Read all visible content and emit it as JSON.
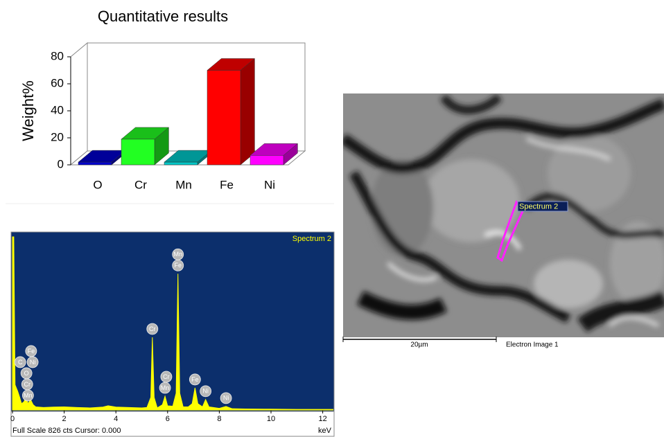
{
  "chart_data": [
    {
      "type": "bar3d",
      "title": "Quantitative results",
      "ylabel": "Weight%",
      "categories": [
        "O",
        "Cr",
        "Mn",
        "Fe",
        "Ni"
      ],
      "values": [
        2,
        19,
        2,
        70,
        7
      ],
      "colors": [
        "#0000cc",
        "#22ff22",
        "#00c8c8",
        "#ff0000",
        "#ff00ff"
      ],
      "ylim": [
        0,
        80
      ],
      "yticks": [
        0,
        20,
        40,
        60,
        80
      ]
    },
    {
      "type": "spectrum",
      "xlabel": "keV",
      "footer": "Full Scale 826 cts Cursor: 0.000",
      "x": [
        0,
        0.05,
        0.1,
        0.2,
        0.28,
        0.35,
        0.45,
        0.52,
        0.6,
        0.7,
        0.8,
        0.9,
        1.2,
        1.6,
        2.0,
        2.5,
        3.0,
        3.5,
        3.7,
        4.0,
        4.5,
        5.0,
        5.2,
        5.35,
        5.41,
        5.48,
        5.6,
        5.8,
        5.9,
        6.0,
        6.2,
        6.33,
        6.4,
        6.47,
        6.6,
        6.8,
        6.95,
        7.06,
        7.17,
        7.35,
        7.47,
        7.6,
        8.0,
        8.26,
        8.5,
        9,
        10,
        11,
        12,
        12.4
      ],
      "series": [
        {
          "name": "Spectrum 2",
          "color": "#ffff00",
          "values": [
            826,
            826,
            120,
            90,
            60,
            30,
            40,
            66,
            30,
            50,
            25,
            15,
            12,
            14,
            15,
            12,
            10,
            14,
            20,
            14,
            12,
            10,
            12,
            60,
            347,
            60,
            10,
            25,
            66,
            20,
            18,
            80,
            650,
            80,
            15,
            15,
            30,
            106,
            30,
            15,
            50,
            15,
            8,
            17,
            6,
            5,
            4,
            3,
            3,
            3
          ]
        }
      ],
      "xlim": [
        0,
        12.4
      ],
      "ylim": [
        0,
        826
      ],
      "xticks": [
        0,
        2,
        4,
        6,
        8,
        10,
        12
      ],
      "annotations": [
        {
          "label": "Mn",
          "x": 0.6
        },
        {
          "label": "Cr",
          "x": 0.57
        },
        {
          "label": "O",
          "x": 0.54
        },
        {
          "label": "Ni",
          "x": 0.78
        },
        {
          "label": "Fe",
          "x": 0.72
        },
        {
          "label": "C",
          "x": 0.3
        },
        {
          "label": "Cr",
          "x": 5.41
        },
        {
          "label": "Mn",
          "x": 5.9
        },
        {
          "label": "Cr",
          "x": 5.95
        },
        {
          "label": "Fe",
          "x": 6.4
        },
        {
          "label": "Mn",
          "x": 6.4
        },
        {
          "label": "Fe",
          "x": 7.06
        },
        {
          "label": "Ni",
          "x": 7.47
        },
        {
          "label": "Ni",
          "x": 8.26
        }
      ]
    }
  ],
  "image": {
    "label": "Spectrum 2",
    "scale_bar": "20µm",
    "caption": "Electron Image 1"
  }
}
